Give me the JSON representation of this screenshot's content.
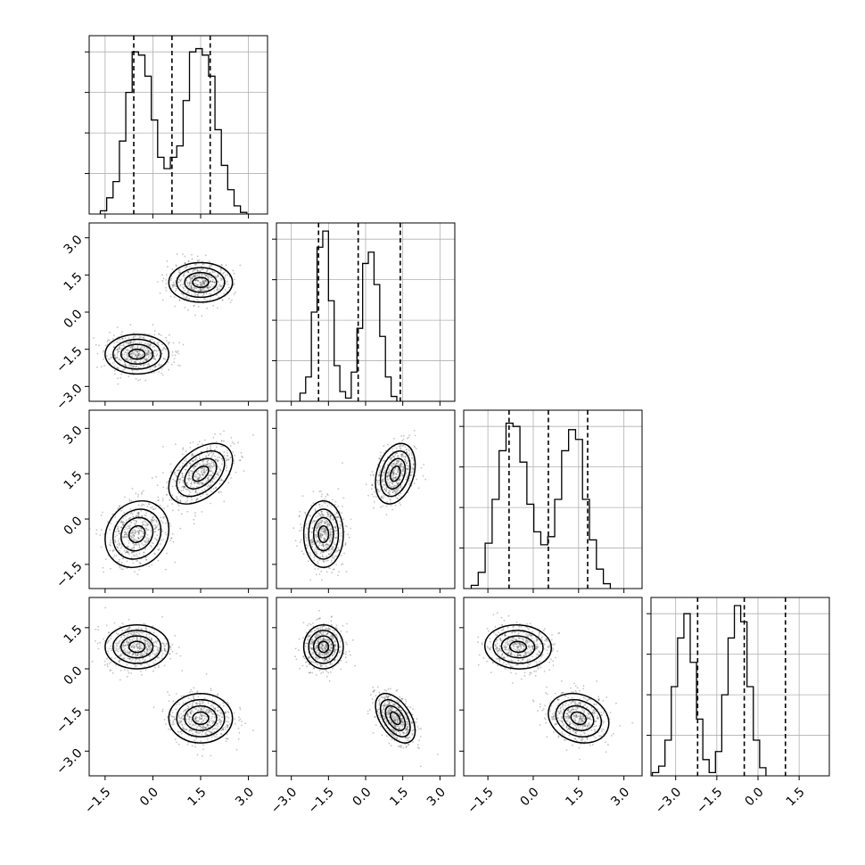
{
  "chart_data": {
    "type": "corner",
    "grid": true,
    "parameters": 4,
    "diagonal_ylim": [
      0,
      1.1
    ],
    "axis_ranges": [
      [
        -2.0,
        3.6
      ],
      [
        -3.6,
        3.6
      ],
      [
        -2.3,
        3.6
      ],
      [
        -3.9,
        2.6
      ]
    ],
    "tick_labels": [
      [
        "−1.5",
        "0.0",
        "1.5",
        "3.0"
      ],
      [
        "−3.0",
        "−1.5",
        "0.0",
        "1.5",
        "3.0"
      ],
      [
        "−1.5",
        "0.0",
        "1.5",
        "3.0"
      ],
      [
        "−3.0",
        "−1.5",
        "0.0",
        "1.5"
      ]
    ],
    "tick_values": [
      [
        -1.5,
        0.0,
        1.5,
        3.0
      ],
      [
        -3.0,
        -1.5,
        0.0,
        1.5,
        3.0
      ],
      [
        -1.5,
        0.0,
        1.5,
        3.0
      ],
      [
        -3.0,
        -1.5,
        0.0,
        1.5
      ]
    ],
    "quantiles": [
      [
        -0.6,
        0.6,
        1.8
      ],
      [
        -1.9,
        -0.3,
        1.4
      ],
      [
        -0.8,
        0.5,
        1.8
      ],
      [
        -2.2,
        -0.5,
        1.0
      ]
    ],
    "histograms": [
      {
        "edges_start": -1.65,
        "bin_width": 0.2,
        "counts": [
          0.02,
          0.1,
          0.2,
          0.45,
          0.75,
          1.0,
          0.98,
          0.85,
          0.58,
          0.35,
          0.28,
          0.35,
          0.42,
          0.7,
          1.0,
          1.02,
          0.98,
          0.85,
          0.52,
          0.3,
          0.15,
          0.05,
          0.01
        ]
      },
      {
        "edges_start": -2.65,
        "bin_width": 0.23,
        "counts": [
          0.05,
          0.15,
          0.55,
          0.95,
          1.05,
          0.62,
          0.22,
          0.06,
          0.02,
          0.18,
          0.45,
          0.85,
          0.92,
          0.72,
          0.4,
          0.15,
          0.03
        ]
      },
      {
        "edges_start": -2.05,
        "bin_width": 0.23,
        "counts": [
          0.02,
          0.1,
          0.28,
          0.55,
          0.85,
          1.02,
          1.0,
          0.78,
          0.52,
          0.35,
          0.27,
          0.32,
          0.55,
          0.85,
          0.98,
          0.92,
          0.55,
          0.3,
          0.12,
          0.03
        ]
      },
      {
        "edges_start": -3.85,
        "bin_width": 0.23,
        "counts": [
          0.02,
          0.06,
          0.22,
          0.55,
          0.85,
          1.0,
          0.7,
          0.35,
          0.1,
          0.02,
          0.15,
          0.5,
          0.85,
          1.05,
          0.95,
          0.55,
          0.22,
          0.05
        ]
      }
    ],
    "mixture_components": [
      {
        "weight": 0.5,
        "mean": [
          -0.5,
          -1.7,
          -0.5,
          0.8
        ],
        "std": [
          0.5,
          0.4,
          0.55,
          0.4
        ],
        "corr_row_col": {
          "2_0": 0.15,
          "3_2": -0.05
        }
      },
      {
        "weight": 0.5,
        "mean": [
          1.5,
          1.2,
          1.5,
          -1.8
        ],
        "std": [
          0.5,
          0.4,
          0.5,
          0.45
        ],
        "corr_row_col": {
          "2_0": 0.45,
          "2_1": 0.3,
          "3_1": -0.5,
          "3_2": -0.2
        }
      }
    ],
    "contour_levels_sigma": [
      0.5,
      1.0,
      1.5,
      2.0
    ]
  }
}
